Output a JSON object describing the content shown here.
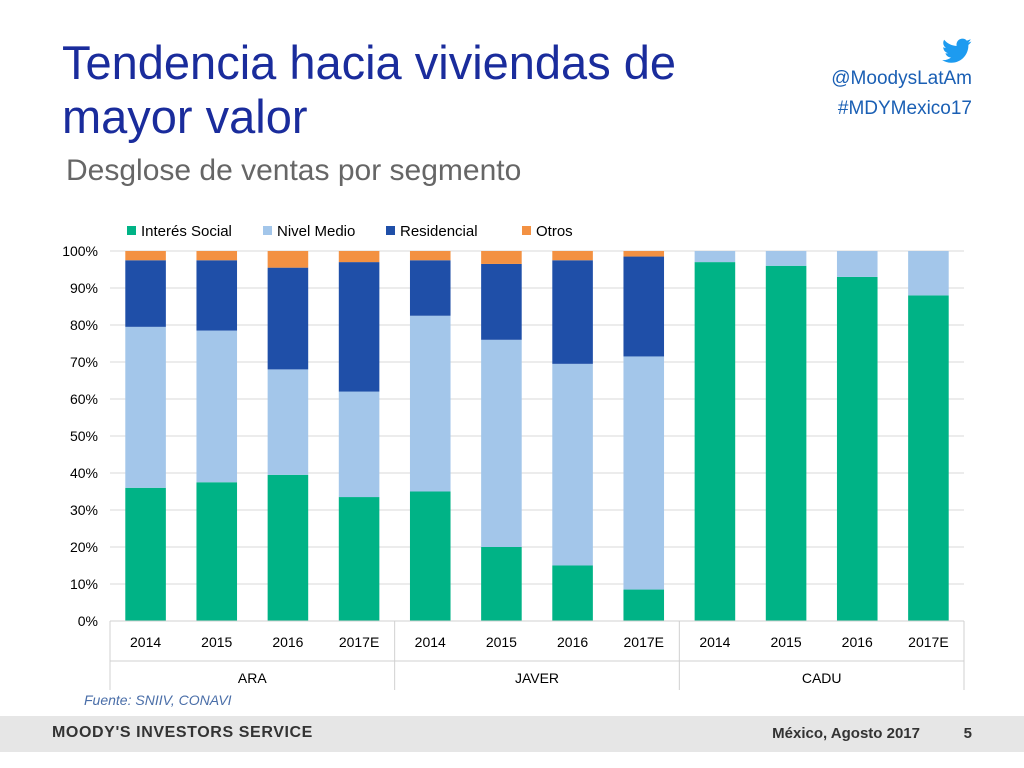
{
  "header": {
    "title": "Tendencia hacia viviendas de mayor valor",
    "subtitle": "Desglose de ventas por segmento",
    "social_handle": "@MoodysLatAm",
    "hashtag": "#MDYMexico17",
    "twitter_icon": "twitter-bird-icon"
  },
  "colors": {
    "title": "#1a2c9c",
    "interes_social": "#00b386",
    "nivel_medio": "#a3c6ea",
    "residencial": "#1f4fa8",
    "otros": "#f39142"
  },
  "chart_data": {
    "type": "bar",
    "stacked": true,
    "legend_position": "top",
    "gridlines": true,
    "ylim": [
      0,
      100
    ],
    "y_ticks": [
      "0%",
      "10%",
      "20%",
      "30%",
      "40%",
      "50%",
      "60%",
      "70%",
      "80%",
      "90%",
      "100%"
    ],
    "groups": [
      {
        "name": "ARA",
        "categories": [
          "2014",
          "2015",
          "2016",
          "2017E"
        ]
      },
      {
        "name": "JAVER",
        "categories": [
          "2014",
          "2015",
          "2016",
          "2017E"
        ]
      },
      {
        "name": "CADU",
        "categories": [
          "2014",
          "2015",
          "2016",
          "2017E"
        ]
      }
    ],
    "series": [
      {
        "name": "Interés Social",
        "color": "#00b386",
        "values": [
          36,
          37.5,
          39.5,
          33.5,
          35,
          20,
          15,
          8.5,
          97,
          96,
          93,
          88
        ]
      },
      {
        "name": "Nivel Medio",
        "color": "#a3c6ea",
        "values": [
          43.5,
          41,
          28.5,
          28.5,
          47.5,
          56,
          54.5,
          63,
          3,
          4,
          7,
          12
        ]
      },
      {
        "name": "Residencial",
        "color": "#1f4fa8",
        "values": [
          18,
          19,
          27.5,
          35,
          15,
          20.5,
          28,
          27,
          0,
          0,
          0,
          0
        ]
      },
      {
        "name": "Otros",
        "color": "#f39142",
        "values": [
          2.5,
          2.5,
          4.5,
          3,
          2.5,
          3.5,
          2.5,
          1.5,
          0,
          0,
          0,
          0
        ]
      }
    ]
  },
  "source": "Fuente: SNIIV, CONAVI",
  "footer": {
    "brand": "MOODY'S INVESTORS SERVICE",
    "date": "México, Agosto 2017",
    "page": "5"
  }
}
